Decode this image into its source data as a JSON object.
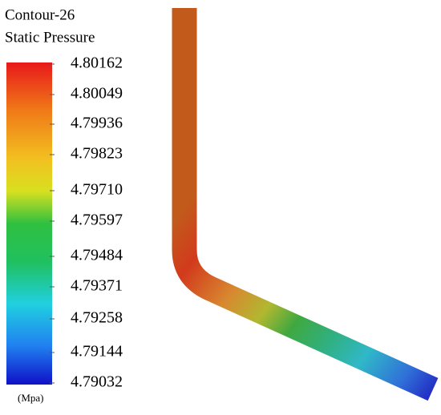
{
  "title": "Contour-26",
  "subtitle": "Static Pressure",
  "colorbar": {
    "ticks": [
      "4.80162",
      "4.80049",
      "4.79936",
      "4.79823",
      "4.79710",
      "4.79597",
      "4.79484",
      "4.79371",
      "4.79258",
      "4.79144",
      "4.79032"
    ],
    "unit": "(Mpa)"
  }
}
